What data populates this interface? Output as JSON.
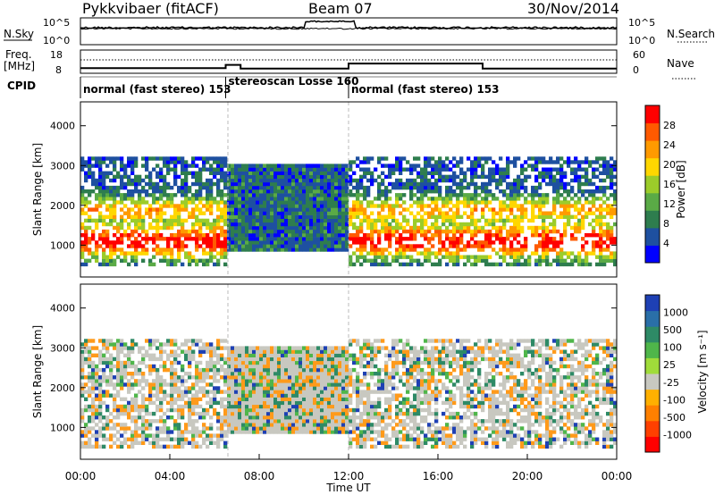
{
  "header": {
    "station": "Pykkvibaer (fitACF)",
    "beam": "Beam 07",
    "date": "30/Nov/2014"
  },
  "chart_data": [
    {
      "type": "line",
      "panel": "noise",
      "left_label": "N.Sky",
      "right_label": "N.Search",
      "left_ticks": [
        "10^5",
        "10^0"
      ],
      "right_ticks": [
        "10^5",
        "10^0"
      ]
    },
    {
      "type": "line",
      "panel": "freq-nave",
      "left_label_1": "Freq.",
      "left_label_2": "[MHz]",
      "right_label": "Nave",
      "left_ticks": [
        "18",
        "8"
      ],
      "right_ticks": [
        "60",
        "0"
      ],
      "freq_series": [
        {
          "x": "00:00",
          "y": 10.2
        },
        {
          "x": "06:30",
          "y": 10.2
        },
        {
          "x": "06:30",
          "y": 11.6
        },
        {
          "x": "07:10",
          "y": 11.6
        },
        {
          "x": "07:10",
          "y": 10.0
        },
        {
          "x": "12:00",
          "y": 10.0
        },
        {
          "x": "12:00",
          "y": 12.2
        },
        {
          "x": "18:00",
          "y": 12.2
        },
        {
          "x": "18:00",
          "y": 10.0
        },
        {
          "x": "24:00",
          "y": 10.0
        }
      ],
      "freq_ylim": [
        8,
        18
      ]
    },
    {
      "type": "table",
      "panel": "cpid",
      "label": "CPID",
      "segments": [
        {
          "start": "00:00",
          "end": "06:30",
          "name": "normal (fast stereo) 153"
        },
        {
          "start": "06:30",
          "end": "12:00",
          "name": "stereoscan Losse 160"
        },
        {
          "start": "12:00",
          "end": "24:00",
          "name": "normal (fast stereo) 153"
        }
      ]
    },
    {
      "type": "heatmap",
      "panel": "power",
      "ylabel": "Slant Range [km]",
      "yticks": [
        1000,
        2000,
        3000,
        4000
      ],
      "ylim": [
        200,
        4600
      ],
      "colorbar_label": "Power [dB]",
      "colorbar_ticks": [
        4,
        8,
        12,
        16,
        20,
        24,
        28
      ],
      "colorscale": [
        "#0000ff",
        "#1e50a0",
        "#2e7d4e",
        "#5aaa46",
        "#9ccc2a",
        "#ffd700",
        "#ff9a00",
        "#ff5a00",
        "#ff0000"
      ]
    },
    {
      "type": "heatmap",
      "panel": "velocity",
      "ylabel": "Slant Range [km]",
      "yticks": [
        1000,
        2000,
        3000,
        4000
      ],
      "ylim": [
        200,
        4600
      ],
      "colorbar_label": "Velocity  [m s⁻¹]",
      "colorbar_ticks": [
        "1000",
        "500",
        "100",
        "25",
        "-25",
        "-100",
        "-500",
        "-1000"
      ],
      "colorscale": [
        "#1e40b4",
        "#2a6fa8",
        "#2e8a66",
        "#4fb64a",
        "#a0dc3a",
        "#c8c8c0",
        "#ffb000",
        "#ff8000",
        "#ff4000",
        "#ff0000"
      ],
      "xlabel": "Time UT",
      "xticks": [
        "00:00",
        "04:00",
        "08:00",
        "12:00",
        "16:00",
        "20:00",
        "00:00"
      ]
    }
  ]
}
